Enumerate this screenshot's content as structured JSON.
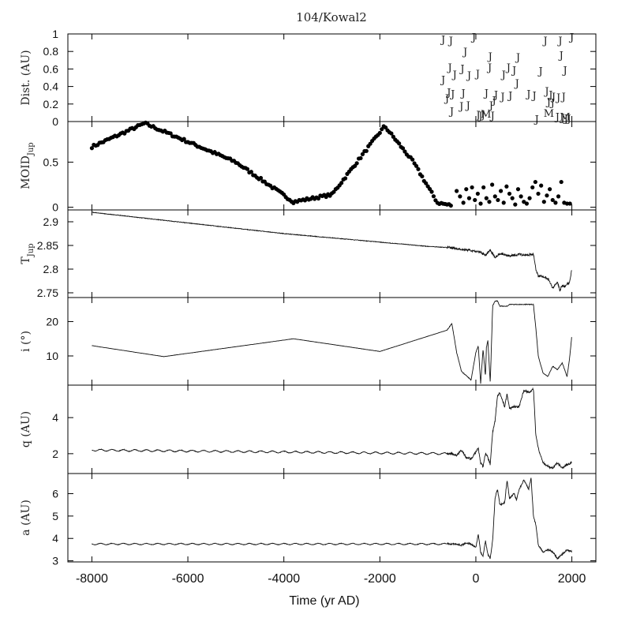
{
  "title": "104/Kowal2",
  "x_axis": {
    "label": "Time (yr AD)",
    "range": [
      -8500,
      2500
    ],
    "ticks": [
      -8000,
      -6000,
      -4000,
      -2000,
      0,
      2000
    ],
    "tick_labels": [
      "-8000",
      "-6000",
      "-4000",
      "-2000",
      "0",
      "2000"
    ]
  },
  "chart_data": [
    {
      "id": "dist",
      "type": "scatter",
      "ylabel": "Dist. (AU)",
      "ylim": [
        0,
        1
      ],
      "yticks": [
        0,
        0.2,
        0.4,
        0.6,
        0.8,
        1
      ],
      "ytick_labels": [
        "0",
        "0.2",
        "0.4",
        "0.6",
        "0.8",
        "1"
      ],
      "marker_text": {
        "J": "J",
        "M": "M"
      },
      "points": [
        {
          "x": -680,
          "y": 0.94,
          "m": "J"
        },
        {
          "x": -520,
          "y": 0.93,
          "m": "J"
        },
        {
          "x": -40,
          "y": 0.97,
          "m": "J"
        },
        {
          "x": -220,
          "y": 0.8,
          "m": "J"
        },
        {
          "x": 300,
          "y": 0.75,
          "m": "J"
        },
        {
          "x": 880,
          "y": 0.74,
          "m": "J"
        },
        {
          "x": 1450,
          "y": 0.93,
          "m": "J"
        },
        {
          "x": 1760,
          "y": 0.93,
          "m": "J"
        },
        {
          "x": 2000,
          "y": 0.97,
          "m": "J"
        },
        {
          "x": 1780,
          "y": 0.76,
          "m": "J"
        },
        {
          "x": -540,
          "y": 0.62,
          "m": "J"
        },
        {
          "x": -280,
          "y": 0.61,
          "m": "J"
        },
        {
          "x": 290,
          "y": 0.62,
          "m": "J"
        },
        {
          "x": 680,
          "y": 0.62,
          "m": "J"
        },
        {
          "x": 800,
          "y": 0.59,
          "m": "J"
        },
        {
          "x": 1350,
          "y": 0.58,
          "m": "J"
        },
        {
          "x": 1860,
          "y": 0.59,
          "m": "J"
        },
        {
          "x": -440,
          "y": 0.54,
          "m": "J"
        },
        {
          "x": -140,
          "y": 0.53,
          "m": "J"
        },
        {
          "x": 40,
          "y": 0.55,
          "m": "J"
        },
        {
          "x": 580,
          "y": 0.54,
          "m": "J"
        },
        {
          "x": -680,
          "y": 0.48,
          "m": "J"
        },
        {
          "x": 860,
          "y": 0.44,
          "m": "J"
        },
        {
          "x": -560,
          "y": 0.34,
          "m": "J"
        },
        {
          "x": -480,
          "y": 0.32,
          "m": "J"
        },
        {
          "x": -260,
          "y": 0.33,
          "m": "J"
        },
        {
          "x": 220,
          "y": 0.33,
          "m": "J"
        },
        {
          "x": 420,
          "y": 0.31,
          "m": "J"
        },
        {
          "x": 560,
          "y": 0.29,
          "m": "J"
        },
        {
          "x": 720,
          "y": 0.3,
          "m": "J"
        },
        {
          "x": 1100,
          "y": 0.32,
          "m": "J"
        },
        {
          "x": 1220,
          "y": 0.3,
          "m": "J"
        },
        {
          "x": 1480,
          "y": 0.35,
          "m": "J"
        },
        {
          "x": 1560,
          "y": 0.31,
          "m": "J"
        },
        {
          "x": 1620,
          "y": 0.29,
          "m": "J"
        },
        {
          "x": 1720,
          "y": 0.28,
          "m": "J"
        },
        {
          "x": 1830,
          "y": 0.29,
          "m": "J"
        },
        {
          "x": -600,
          "y": 0.27,
          "m": "J"
        },
        {
          "x": 380,
          "y": 0.25,
          "m": "J"
        },
        {
          "x": 1520,
          "y": 0.23,
          "m": "J"
        },
        {
          "x": 1600,
          "y": 0.22,
          "m": "J"
        },
        {
          "x": -300,
          "y": 0.18,
          "m": "J"
        },
        {
          "x": -160,
          "y": 0.19,
          "m": "J"
        },
        {
          "x": 320,
          "y": 0.19,
          "m": "J"
        },
        {
          "x": -500,
          "y": 0.12,
          "m": "J"
        },
        {
          "x": 50,
          "y": 0.08,
          "m": "J"
        },
        {
          "x": 100,
          "y": 0.07,
          "m": "J"
        },
        {
          "x": 150,
          "y": 0.08,
          "m": "J"
        },
        {
          "x": 350,
          "y": 0.07,
          "m": "J"
        },
        {
          "x": 1270,
          "y": 0.03,
          "m": "J"
        },
        {
          "x": 1700,
          "y": 0.06,
          "m": "J"
        },
        {
          "x": 1810,
          "y": 0.05,
          "m": "J"
        },
        {
          "x": 1880,
          "y": 0.04,
          "m": "J"
        },
        {
          "x": 1940,
          "y": 0.04,
          "m": "J"
        },
        {
          "x": 210,
          "y": 0.09,
          "m": "M"
        },
        {
          "x": 1520,
          "y": 0.1,
          "m": "M"
        },
        {
          "x": 1860,
          "y": 0.06,
          "m": "M"
        }
      ]
    },
    {
      "id": "moid",
      "type": "scatter",
      "ylabel_main": "MOID",
      "ylabel_sub": "Jup",
      "ylim": [
        -0.03,
        0.95
      ],
      "yticks": [
        0,
        0.5
      ],
      "ytick_labels": [
        "0",
        "0.5"
      ],
      "keys": {
        "x": [
          -8000,
          -6900,
          -5000,
          -3800,
          -3000,
          -1900,
          -1300,
          -800,
          -500
        ],
        "y": [
          0.67,
          0.93,
          0.5,
          0.06,
          0.14,
          0.9,
          0.5,
          0.05,
          0.02
        ]
      },
      "scatter_x": [
        -400,
        -330,
        -260,
        -200,
        -140,
        -80,
        -20,
        40,
        100,
        160,
        220,
        280,
        340,
        400,
        460,
        520,
        580,
        640,
        700,
        760,
        820,
        880,
        940,
        1000,
        1060,
        1120,
        1180,
        1240,
        1300,
        1360,
        1420,
        1480,
        1540,
        1600,
        1660,
        1720,
        1780,
        1840,
        1900,
        1960
      ],
      "scatter_y": [
        0.18,
        0.12,
        0.05,
        0.2,
        0.1,
        0.22,
        0.08,
        0.15,
        0.04,
        0.22,
        0.1,
        0.06,
        0.25,
        0.12,
        0.08,
        0.18,
        0.05,
        0.23,
        0.15,
        0.1,
        0.03,
        0.2,
        0.12,
        0.06,
        0.04,
        0.1,
        0.22,
        0.28,
        0.15,
        0.24,
        0.06,
        0.13,
        0.2,
        0.08,
        0.05,
        0.12,
        0.28,
        0.05,
        0.04,
        0.04
      ]
    },
    {
      "id": "tjup",
      "type": "line",
      "ylabel_main": "T",
      "ylabel_sub": "Jup",
      "ylim": [
        2.74,
        2.925
      ],
      "yticks": [
        2.75,
        2.8,
        2.85,
        2.9
      ],
      "ytick_labels": [
        "2.75",
        "2.8",
        "2.85",
        "2.9"
      ],
      "x": [
        -8000,
        -4000,
        -1000,
        -500,
        0,
        100,
        200,
        300,
        400,
        500,
        700,
        900,
        1100,
        1200,
        1250,
        1300,
        1400,
        1500,
        1600,
        1700,
        1750,
        1800,
        1850,
        1900,
        1950,
        2000
      ],
      "y": [
        2.92,
        2.875,
        2.848,
        2.845,
        2.838,
        2.835,
        2.83,
        2.84,
        2.825,
        2.833,
        2.828,
        2.831,
        2.83,
        2.832,
        2.8,
        2.785,
        2.785,
        2.78,
        2.76,
        2.772,
        2.755,
        2.766,
        2.763,
        2.77,
        2.77,
        2.8
      ]
    },
    {
      "id": "inc",
      "type": "line",
      "ylabel": "i (°)",
      "ylim": [
        1.5,
        27
      ],
      "yticks": [
        10,
        20
      ],
      "ytick_labels": [
        "10",
        "20"
      ],
      "x": [
        -8000,
        -6500,
        -3800,
        -2000,
        -600,
        -500,
        -400,
        -300,
        -100,
        0,
        50,
        100,
        150,
        200,
        220,
        250,
        300,
        350,
        400,
        450,
        500,
        600,
        650,
        700,
        1000,
        1200,
        1250,
        1300,
        1400,
        1500,
        1600,
        1700,
        1800,
        1900,
        1950,
        2000
      ],
      "y": [
        13,
        9.8,
        15,
        11.3,
        17.5,
        19.5,
        11.0,
        5.5,
        3.0,
        11.0,
        13.0,
        2.0,
        12.0,
        4.0,
        12.5,
        14.5,
        2.0,
        24.5,
        26.0,
        26.0,
        24.5,
        24.5,
        24.5,
        25.0,
        25.0,
        25.0,
        18.0,
        10.0,
        5.0,
        4.0,
        7.0,
        6.0,
        8.0,
        4.0,
        9.0,
        16.0
      ]
    },
    {
      "id": "q",
      "type": "line",
      "ylabel": "q (AU)",
      "ylim": [
        0.9,
        5.8
      ],
      "yticks": [
        2,
        4
      ],
      "ytick_labels": [
        "2",
        "4"
      ],
      "x": [
        -8000,
        -500,
        -400,
        -300,
        -200,
        -100,
        0,
        50,
        100,
        150,
        200,
        250,
        300,
        350,
        400,
        450,
        500,
        600,
        650,
        700,
        800,
        900,
        1000,
        1100,
        1200,
        1250,
        1300,
        1400,
        1500,
        1600,
        1700,
        1800,
        1900,
        2000
      ],
      "y": [
        2.2,
        2.0,
        1.9,
        2.2,
        1.8,
        1.7,
        2.1,
        2.3,
        1.5,
        1.3,
        2.0,
        1.8,
        1.4,
        3.2,
        3.8,
        5.2,
        5.4,
        4.6,
        5.3,
        4.5,
        4.6,
        4.6,
        5.5,
        5.4,
        5.6,
        3.0,
        2.3,
        1.5,
        1.3,
        1.2,
        1.5,
        1.2,
        1.4,
        1.5
      ]
    },
    {
      "id": "a",
      "type": "line",
      "ylabel": "a (AU)",
      "ylim": [
        2.95,
        6.9
      ],
      "yticks": [
        3,
        4,
        5,
        6
      ],
      "ytick_labels": [
        "3",
        "4",
        "5",
        "6"
      ],
      "x": [
        -8000,
        -500,
        -300,
        -200,
        -100,
        0,
        50,
        100,
        150,
        200,
        250,
        300,
        350,
        400,
        450,
        500,
        600,
        650,
        700,
        800,
        850,
        900,
        1000,
        1100,
        1150,
        1200,
        1250,
        1300,
        1400,
        1500,
        1600,
        1700,
        1800,
        1900,
        2000
      ],
      "y": [
        3.75,
        3.75,
        3.7,
        3.8,
        3.75,
        3.6,
        4.2,
        3.4,
        3.2,
        3.9,
        3.3,
        3.1,
        3.9,
        5.8,
        6.2,
        5.5,
        5.6,
        6.6,
        5.8,
        6.0,
        5.7,
        6.2,
        6.6,
        6.2,
        6.7,
        5.0,
        4.6,
        3.7,
        3.4,
        3.5,
        3.4,
        3.1,
        3.3,
        3.5,
        3.4
      ]
    }
  ]
}
